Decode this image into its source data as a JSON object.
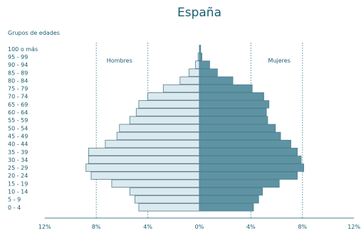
{
  "chart_data": {
    "type": "bar",
    "orientation": "horizontal",
    "title": "España",
    "ylabel": "Grupos de edades",
    "xlim": [
      -12,
      12
    ],
    "x_tick_labels": [
      "12%",
      "8%",
      "4%",
      "0%",
      "4%",
      "8%",
      "12%"
    ],
    "gridlines": [
      -8,
      -4,
      4,
      8
    ],
    "grid": true,
    "categories": [
      "100 o más",
      "95 - 99",
      "90 - 94",
      "85 - 89",
      "80 - 84",
      "75 - 79",
      "70 - 74",
      "65 - 69",
      "60 - 64",
      "55 - 59",
      "50 - 54",
      "45 - 49",
      "40 - 44",
      "35 - 39",
      "30 - 34",
      "25 - 29",
      "20 - 24",
      "15 - 19",
      "10 - 14",
      "5 - 9",
      "0 - 4"
    ],
    "series": [
      {
        "name": "Hombres",
        "side": "left",
        "color": "#dce9ee",
        "values": [
          0.0,
          0.1,
          0.3,
          0.8,
          1.5,
          2.8,
          4.0,
          4.7,
          4.9,
          5.4,
          6.2,
          6.4,
          7.3,
          8.6,
          8.6,
          8.8,
          8.4,
          6.8,
          5.4,
          5.0,
          4.7
        ]
      },
      {
        "name": "Mujeres",
        "side": "right",
        "color": "#5e93a3",
        "values": [
          0.1,
          0.2,
          0.8,
          1.4,
          2.6,
          4.1,
          5.0,
          5.4,
          5.2,
          5.3,
          5.9,
          6.3,
          7.1,
          7.6,
          7.9,
          8.1,
          7.6,
          6.2,
          4.9,
          4.6,
          4.2
        ]
      }
    ],
    "colors": {
      "hombres_fill": "#dce9ee",
      "mujeres_fill": "#5e93a3",
      "bar_stroke": "#4f7f8e",
      "axis": "#4f7f8e",
      "grid": "#4a8fa1",
      "text": "#1a5d73",
      "title": "#1a5d73"
    }
  }
}
